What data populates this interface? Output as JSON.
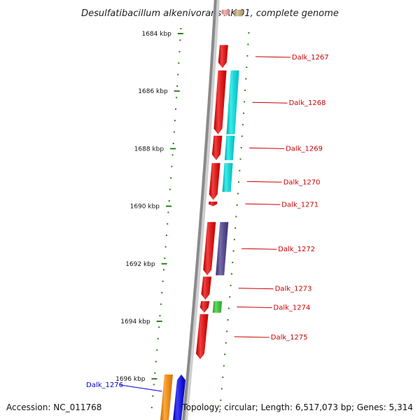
{
  "title": "Desulfatibacillum alkenivorans AK-01, complete genome",
  "footer": {
    "accession": "Accession: NC_011768",
    "topology": "Topology: circular; Length: 6,517,073 bp; Genes: 5,314"
  },
  "colors": {
    "backbone": "#8a8a8a",
    "tick": "#2e7d1f",
    "label_red": "#cc0000",
    "label_blue": "#0000cc"
  },
  "ruler": {
    "ticks": [
      {
        "kbp": 1684,
        "label": "1684 kbp"
      },
      {
        "kbp": 1686,
        "label": "1686 kbp"
      },
      {
        "kbp": 1688,
        "label": "1688 kbp"
      },
      {
        "kbp": 1690,
        "label": "1690 kbp"
      },
      {
        "kbp": 1692,
        "label": "1692 kbp"
      },
      {
        "kbp": 1694,
        "label": "1694 kbp"
      },
      {
        "kbp": 1696,
        "label": "1696 kbp"
      }
    ]
  },
  "genes": [
    {
      "id": "top-partial-a",
      "label": "",
      "track": "inner",
      "start": 1683.17,
      "end": 1683.4,
      "color": "#f4a0a0",
      "label_color": "#cc0000"
    },
    {
      "id": "top-partial-b",
      "label": "",
      "track": "outer",
      "start": 1683.17,
      "end": 1683.4,
      "color": "#c8b47a",
      "label_color": "#cc0000"
    },
    {
      "id": "dalk-1267",
      "label": "Dalk_1267",
      "track": "inner",
      "start": 1684.4,
      "end": 1685.2,
      "color": "#ee0000",
      "label_color": "#cc0000"
    },
    {
      "id": "dalk-1268",
      "label": "Dalk_1268",
      "track": "inner",
      "start": 1685.28,
      "end": 1687.5,
      "color": "#ee0000",
      "label_color": "#cc0000"
    },
    {
      "id": "dalk-1268-partner",
      "label": "",
      "track": "outer",
      "start": 1685.28,
      "end": 1687.5,
      "color": "#00e5e5",
      "label_color": "#cc0000"
    },
    {
      "id": "dalk-1269",
      "label": "Dalk_1269",
      "track": "inner",
      "start": 1687.55,
      "end": 1688.4,
      "color": "#ee0000",
      "label_color": "#cc0000"
    },
    {
      "id": "dalk-1269-partner",
      "label": "",
      "track": "outer",
      "start": 1687.55,
      "end": 1688.4,
      "color": "#00e5e5",
      "label_color": "#cc0000"
    },
    {
      "id": "dalk-1270",
      "label": "Dalk_1270",
      "track": "inner",
      "start": 1688.5,
      "end": 1689.78,
      "color": "#ee0000",
      "label_color": "#cc0000"
    },
    {
      "id": "dalk-1270-partner",
      "label": "",
      "track": "outer",
      "start": 1688.5,
      "end": 1689.5,
      "color": "#00e5e5",
      "label_color": "#cc0000"
    },
    {
      "id": "dalk-1271",
      "label": "Dalk_1271",
      "track": "inner",
      "start": 1689.84,
      "end": 1690.0,
      "color": "#ee0000",
      "label_color": "#cc0000"
    },
    {
      "id": "dalk-1272",
      "label": "Dalk_1272",
      "track": "inner",
      "start": 1690.55,
      "end": 1692.4,
      "color": "#ee0000",
      "label_color": "#cc0000"
    },
    {
      "id": "dalk-1272-partner",
      "label": "",
      "track": "outer",
      "start": 1690.55,
      "end": 1692.4,
      "color": "#4a3d8f",
      "label_color": "#cc0000"
    },
    {
      "id": "dalk-1273",
      "label": "Dalk_1273",
      "track": "inner",
      "start": 1692.45,
      "end": 1693.25,
      "color": "#ee0000",
      "label_color": "#cc0000"
    },
    {
      "id": "dalk-1274",
      "label": "Dalk_1274",
      "track": "inner",
      "start": 1693.3,
      "end": 1693.7,
      "color": "#ee0000",
      "label_color": "#cc0000"
    },
    {
      "id": "dalk-1274-partner",
      "label": "",
      "track": "outer",
      "start": 1693.3,
      "end": 1693.7,
      "color": "#33cc33",
      "label_color": "#cc0000"
    },
    {
      "id": "dalk-1275",
      "label": "Dalk_1275",
      "track": "inner",
      "start": 1693.75,
      "end": 1695.32,
      "color": "#ee0000",
      "label_color": "#cc0000"
    },
    {
      "id": "dalk-1276",
      "label": "Dalk_1276",
      "track": "far",
      "start": 1695.85,
      "end": 1697.5,
      "color": "#ff8c00",
      "label_color": "#0000cc"
    },
    {
      "id": "dalk-1276-partner",
      "label": "",
      "track": "far2",
      "start": 1695.85,
      "end": 1697.5,
      "color": "#0000ee",
      "label_color": "#0000cc"
    }
  ]
}
